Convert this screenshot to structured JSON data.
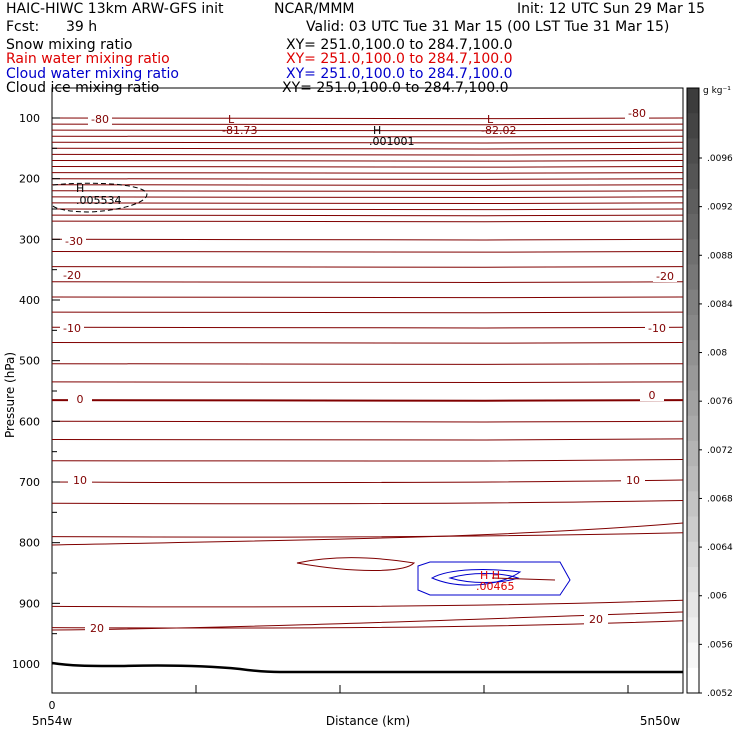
{
  "header": {
    "title_left": "HAIC-HIWC 13km ARW-GFS init",
    "title_center": "NCAR/MMM",
    "init": "Init: 12 UTC Sun 29 Mar 15",
    "fcst_label": "Fcst:",
    "fcst_value": "39 h",
    "valid": "Valid: 03 UTC Tue 31 Mar 15 (00 LST Tue 31 Mar 15)",
    "fields": [
      {
        "name": "Snow mixing ratio",
        "xy": "XY= 251.0,100.0 to 284.7,100.0",
        "color": "#000000"
      },
      {
        "name": "Rain water mixing ratio",
        "xy": "XY= 251.0,100.0 to 284.7,100.0",
        "color": "#dd0000"
      },
      {
        "name": "Cloud water mixing ratio",
        "xy": "XY= 251.0,100.0 to 284.7,100.0",
        "color": "#0000cc"
      },
      {
        "name": "Cloud ice mixing ratio",
        "xy": "XY= 251.0,100.0 to 284.7,100.0",
        "color": "#000000"
      }
    ]
  },
  "chart_data": {
    "type": "contour",
    "xlabel": "Distance (km)",
    "ylabel": "Pressure (hPa)",
    "ylim": [
      1040,
      50
    ],
    "y_ticks": [
      100,
      200,
      300,
      400,
      500,
      600,
      700,
      800,
      900,
      1000
    ],
    "x_tick_labels": [
      {
        "x": 0,
        "label": "0"
      }
    ],
    "x_end_labels": {
      "left": "5n54w",
      "right": "5n50w"
    },
    "temperature_contours": [
      {
        "value": -80,
        "label": "-80"
      },
      {
        "value": -30,
        "label": "-30"
      },
      {
        "value": -20,
        "label": "-20"
      },
      {
        "value": -10,
        "label": "-10"
      },
      {
        "value": 0,
        "label": "0"
      },
      {
        "value": 10,
        "label": "10"
      },
      {
        "value": 20,
        "label": "20"
      }
    ],
    "extrema": [
      {
        "kind": "L",
        "value": "-81.73"
      },
      {
        "kind": "L",
        "value": "-82.02"
      },
      {
        "kind": "H",
        "value": ".001001"
      },
      {
        "kind": "H",
        "value": ".005534"
      },
      {
        "kind": "H H",
        "value": ".00465"
      }
    ],
    "colorbar": {
      "unit": "g kg⁻¹",
      "labels": [
        ".0096",
        ".0092",
        ".0088",
        ".0084",
        ".008",
        ".0076",
        ".0072",
        ".0068",
        ".0064",
        ".006",
        ".0056",
        ".0052"
      ]
    },
    "colors": {
      "contour": "#800000",
      "cloud_water": "#0000cc",
      "terrain": "#000000"
    }
  }
}
